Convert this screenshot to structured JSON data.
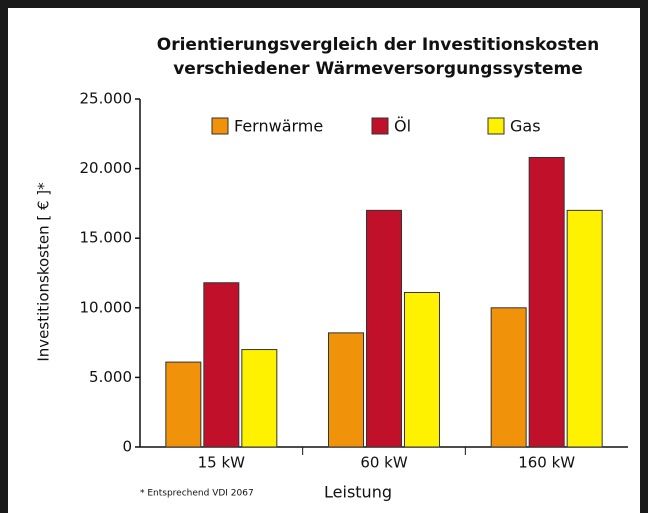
{
  "chart_data": {
    "type": "bar",
    "title_lines": [
      "Orientierungsvergleich der Investitionskosten",
      "verschiedener Wärmeversorgungssysteme"
    ],
    "y_label": "Investitionskosten [ € ]*",
    "x_label": "Leistung",
    "footnote": "* Entsprechend VDI 2067",
    "categories": [
      "15 kW",
      "60 kW",
      "160 kW"
    ],
    "series": [
      {
        "name": "Fernwärme",
        "color": "#f0920a",
        "values": [
          6100,
          8200,
          10000
        ]
      },
      {
        "name": "Öl",
        "color": "#c0102a",
        "values": [
          11800,
          17000,
          20800
        ]
      },
      {
        "name": "Gas",
        "color": "#fff200",
        "values": [
          7000,
          11100,
          17000
        ]
      }
    ],
    "ylim": [
      0,
      25000
    ],
    "yticks": [
      0,
      {
        "value": 5000,
        "label": "5.000"
      },
      {
        "value": 10000,
        "label": "10.000"
      },
      {
        "value": 15000,
        "label": "15.000"
      },
      {
        "value": 20000,
        "label": "20.000"
      },
      {
        "value": 25000,
        "label": "25.000"
      }
    ],
    "grid": false,
    "legend": "top"
  }
}
